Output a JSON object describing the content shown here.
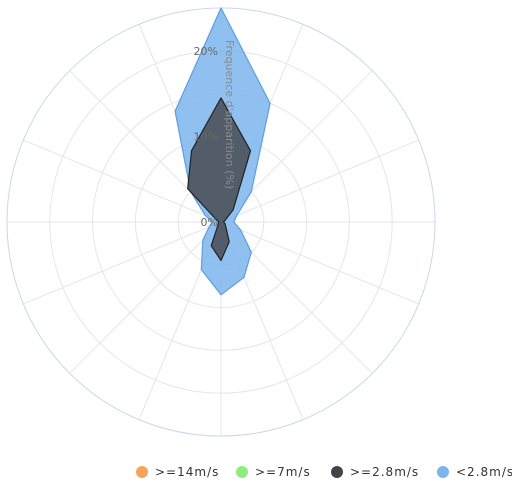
{
  "chart_data": {
    "type": "polar-area",
    "y_axis_label": "Frequence d'apparition (%)",
    "y_ticks": [
      "0%",
      "10%",
      "20%"
    ],
    "ylim": [
      0,
      25
    ],
    "directions": 16,
    "series": [
      {
        "name": ">=14m/s",
        "color": "#f7a35c",
        "values": [
          0,
          0,
          0,
          0,
          0,
          0,
          0,
          0,
          0,
          0,
          0,
          0,
          0,
          0,
          0,
          0
        ]
      },
      {
        "name": ">=7m/s",
        "color": "#90ed7d",
        "values": [
          0,
          0,
          0,
          0,
          0,
          0,
          0,
          0,
          0,
          0,
          0,
          0,
          0,
          0,
          0,
          0
        ]
      },
      {
        "name": ">=2.8m/s",
        "color": "#434348",
        "values": [
          14.5,
          9,
          2,
          0.5,
          0.3,
          0.5,
          0.8,
          2.5,
          4.5,
          3,
          0.5,
          0.3,
          0.3,
          0.5,
          5.5,
          9
        ]
      },
      {
        "name": "<2.8m/s",
        "color": "#7cb5ec",
        "values": [
          25,
          15,
          5,
          2,
          1.5,
          2.5,
          5,
          7,
          8.5,
          6,
          3,
          1.5,
          1,
          2,
          5,
          14
        ]
      }
    ]
  }
}
